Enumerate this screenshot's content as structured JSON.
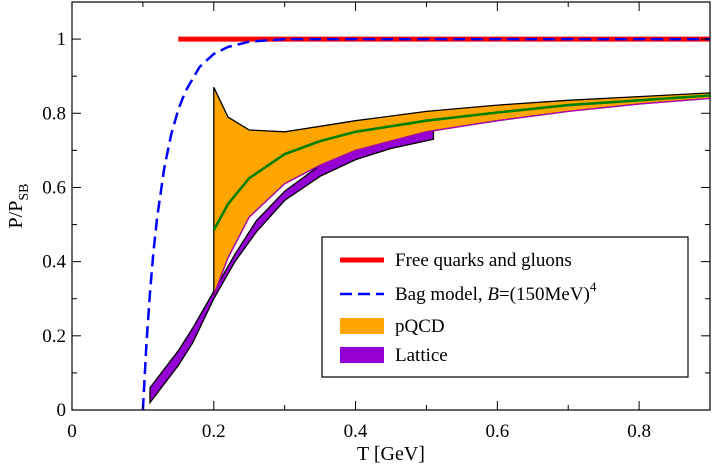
{
  "chart_data": {
    "type": "line",
    "title": "",
    "xlabel": "T [GeV]",
    "ylabel_main": "P/P",
    "ylabel_sub": "SB",
    "xlim": [
      0,
      0.9
    ],
    "ylim": [
      0,
      1.1
    ],
    "x_ticks": [
      0,
      0.2,
      0.4,
      0.6,
      0.8
    ],
    "x_tick_labels": [
      "0",
      "0.2",
      "0.4",
      "0.6",
      "0.8"
    ],
    "y_ticks": [
      0,
      0.2,
      0.4,
      0.6,
      0.8,
      1.0
    ],
    "y_tick_labels": [
      "0",
      "0.2",
      "0.4",
      "0.6",
      "0.8",
      "1"
    ],
    "legend_position": "bottom-right",
    "colors": {
      "free": "#ff0000",
      "bag": "#0000ff",
      "pqcd_fill": "#ffa500",
      "pqcd_center": "#008000",
      "lattice_fill": "#9400d3",
      "lattice_edge": "#c000c0",
      "outline": "#000000"
    },
    "series": [
      {
        "name": "Free quarks and gluons",
        "style": "solid",
        "x": [
          0.15,
          0.9
        ],
        "y": [
          1.0,
          1.0
        ]
      },
      {
        "name": "Bag model",
        "style": "dashed",
        "x": [
          0.1,
          0.105,
          0.11,
          0.115,
          0.12,
          0.13,
          0.14,
          0.15,
          0.16,
          0.18,
          0.2,
          0.22,
          0.25,
          0.3,
          0.35,
          0.4,
          0.5,
          0.6,
          0.7,
          0.8,
          0.9
        ],
        "y": [
          0.0,
          0.177,
          0.317,
          0.428,
          0.518,
          0.651,
          0.743,
          0.81,
          0.859,
          0.925,
          0.96,
          0.979,
          0.993,
          1.0,
          1.0,
          1.0,
          1.0,
          1.0,
          1.0,
          1.0,
          1.0
        ]
      },
      {
        "name": "pQCD",
        "type": "band",
        "x": [
          0.2,
          0.22,
          0.25,
          0.3,
          0.35,
          0.4,
          0.5,
          0.6,
          0.7,
          0.8,
          0.9
        ],
        "y_upper": [
          0.87,
          0.79,
          0.755,
          0.75,
          0.765,
          0.78,
          0.805,
          0.822,
          0.835,
          0.845,
          0.855
        ],
        "y_lower": [
          0.31,
          0.41,
          0.52,
          0.61,
          0.66,
          0.7,
          0.75,
          0.78,
          0.805,
          0.825,
          0.84
        ],
        "center": [
          0.485,
          0.555,
          0.625,
          0.69,
          0.725,
          0.75,
          0.78,
          0.802,
          0.822,
          0.835,
          0.848
        ]
      },
      {
        "name": "Lattice",
        "type": "band",
        "x": [
          0.11,
          0.13,
          0.15,
          0.17,
          0.2,
          0.23,
          0.26,
          0.3,
          0.35,
          0.4,
          0.45,
          0.51
        ],
        "y_upper": [
          0.06,
          0.11,
          0.16,
          0.22,
          0.32,
          0.42,
          0.51,
          0.59,
          0.66,
          0.705,
          0.735,
          0.765
        ],
        "y_lower": [
          0.02,
          0.07,
          0.12,
          0.18,
          0.3,
          0.4,
          0.48,
          0.565,
          0.63,
          0.675,
          0.705,
          0.73
        ]
      }
    ],
    "legend": [
      {
        "label": "Free quarks and gluons",
        "kind": "solid-line"
      },
      {
        "label": "Bag model, ",
        "label_italic": "B",
        "label_rest": "=(150MeV)",
        "label_sup": "4",
        "kind": "dashed-line"
      },
      {
        "label": "pQCD",
        "kind": "fill-orange"
      },
      {
        "label": "Lattice",
        "kind": "fill-violet"
      }
    ]
  }
}
